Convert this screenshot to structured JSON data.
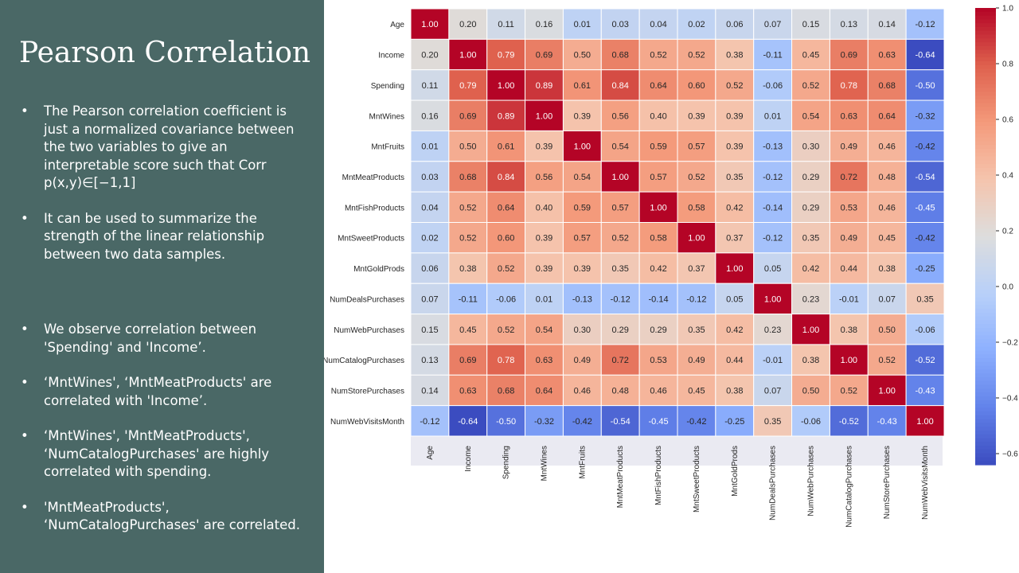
{
  "slide": {
    "title": "Pearson Correlation",
    "bullets_top": [
      "The Pearson correlation coefficient is just a normalized covariance between the two variables to give an interpretable score such that Corr p(x,y)∈[−1,1]",
      "It can be used to summarize the strength of the linear relationship between two data samples."
    ],
    "bullets_bottom": [
      "We observe correlation between 'Spending' and 'Income’.",
      "‘MntWines', ‘MntMeatProducts' are correlated with 'Income’.",
      "‘MntWines', 'MntMeatProducts', ‘NumCatalogPurchases' are highly correlated with spending.",
      "'MntMeatProducts', ‘NumCatalogPurchases' are correlated."
    ],
    "panel_color": "#4a6866"
  },
  "chart_data": {
    "type": "heatmap",
    "title": "",
    "labels": [
      "Age",
      "Income",
      "Spending",
      "MntWines",
      "MntFruits",
      "MntMeatProducts",
      "MntFishProducts",
      "MntSweetProducts",
      "MntGoldProds",
      "NumDealsPurchases",
      "NumWebPurchases",
      "NumCatalogPurchases",
      "NumStorePurchases",
      "NumWebVisitsMonth"
    ],
    "values": [
      [
        1.0,
        0.2,
        0.11,
        0.16,
        0.01,
        0.03,
        0.04,
        0.02,
        0.06,
        0.07,
        0.15,
        0.13,
        0.14,
        -0.12
      ],
      [
        0.2,
        1.0,
        0.79,
        0.69,
        0.5,
        0.68,
        0.52,
        0.52,
        0.38,
        -0.11,
        0.45,
        0.69,
        0.63,
        -0.64
      ],
      [
        0.11,
        0.79,
        1.0,
        0.89,
        0.61,
        0.84,
        0.64,
        0.6,
        0.52,
        -0.06,
        0.52,
        0.78,
        0.68,
        -0.5
      ],
      [
        0.16,
        0.69,
        0.89,
        1.0,
        0.39,
        0.56,
        0.4,
        0.39,
        0.39,
        0.01,
        0.54,
        0.63,
        0.64,
        -0.32
      ],
      [
        0.01,
        0.5,
        0.61,
        0.39,
        1.0,
        0.54,
        0.59,
        0.57,
        0.39,
        -0.13,
        0.3,
        0.49,
        0.46,
        -0.42
      ],
      [
        0.03,
        0.68,
        0.84,
        0.56,
        0.54,
        1.0,
        0.57,
        0.52,
        0.35,
        -0.12,
        0.29,
        0.72,
        0.48,
        -0.54
      ],
      [
        0.04,
        0.52,
        0.64,
        0.4,
        0.59,
        0.57,
        1.0,
        0.58,
        0.42,
        -0.14,
        0.29,
        0.53,
        0.46,
        -0.45
      ],
      [
        0.02,
        0.52,
        0.6,
        0.39,
        0.57,
        0.52,
        0.58,
        1.0,
        0.37,
        -0.12,
        0.35,
        0.49,
        0.45,
        -0.42
      ],
      [
        0.06,
        0.38,
        0.52,
        0.39,
        0.39,
        0.35,
        0.42,
        0.37,
        1.0,
        0.05,
        0.42,
        0.44,
        0.38,
        -0.25
      ],
      [
        0.07,
        -0.11,
        -0.06,
        0.01,
        -0.13,
        -0.12,
        -0.14,
        -0.12,
        0.05,
        1.0,
        0.23,
        -0.01,
        0.07,
        0.35
      ],
      [
        0.15,
        0.45,
        0.52,
        0.54,
        0.3,
        0.29,
        0.29,
        0.35,
        0.42,
        0.23,
        1.0,
        0.38,
        0.5,
        -0.06
      ],
      [
        0.13,
        0.69,
        0.78,
        0.63,
        0.49,
        0.72,
        0.53,
        0.49,
        0.44,
        -0.01,
        0.38,
        1.0,
        0.52,
        -0.52
      ],
      [
        0.14,
        0.63,
        0.68,
        0.64,
        0.46,
        0.48,
        0.46,
        0.45,
        0.38,
        0.07,
        0.5,
        0.52,
        1.0,
        -0.43
      ],
      [
        -0.12,
        -0.64,
        -0.5,
        -0.32,
        -0.42,
        -0.54,
        -0.45,
        -0.42,
        -0.25,
        0.35,
        -0.06,
        -0.52,
        -0.43,
        1.0
      ]
    ],
    "colormap": "coolwarm",
    "vmin": -0.64,
    "vmax": 1.0,
    "colorbar_ticks": [
      1.0,
      0.8,
      0.6,
      0.4,
      0.2,
      0.0,
      -0.2,
      -0.4,
      -0.6
    ],
    "colorbar_tick_labels": [
      "1.0",
      "0.8",
      "0.6",
      "0.4",
      "0.2",
      "0.0",
      "−0.2",
      "−0.4",
      "−0.6"
    ],
    "annotation_format": "0.00",
    "grid": false,
    "legend": "colorbar-right"
  }
}
